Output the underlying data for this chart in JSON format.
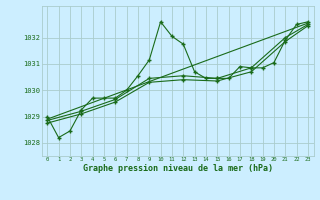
{
  "title": "Graphe pression niveau de la mer (hPa)",
  "background_color": "#cceeff",
  "grid_color": "#aacccc",
  "line_color": "#1a6b1a",
  "xlim": [
    -0.5,
    23.5
  ],
  "ylim": [
    1027.5,
    1033.2
  ],
  "yticks": [
    1028,
    1029,
    1030,
    1031,
    1032
  ],
  "xticks": [
    0,
    1,
    2,
    3,
    4,
    5,
    6,
    7,
    8,
    9,
    10,
    11,
    12,
    13,
    14,
    15,
    16,
    17,
    18,
    19,
    20,
    21,
    22,
    23
  ],
  "series1_x": [
    0,
    1,
    2,
    3,
    4,
    5,
    6,
    7,
    8,
    9,
    10,
    11,
    12,
    13,
    14,
    15,
    16,
    17,
    18,
    19,
    20,
    21,
    22,
    23
  ],
  "series1_y": [
    1029.0,
    1028.2,
    1028.45,
    1029.25,
    1029.7,
    1029.7,
    1029.7,
    1030.0,
    1030.55,
    1031.15,
    1032.6,
    1032.05,
    1031.75,
    1030.7,
    1030.45,
    1030.45,
    1030.45,
    1030.9,
    1030.85,
    1030.85,
    1031.05,
    1031.9,
    1032.5,
    1032.6
  ],
  "series2_x": [
    0,
    23
  ],
  "series2_y": [
    1028.9,
    1032.55
  ],
  "series3_x": [
    0,
    3,
    6,
    9,
    12,
    15,
    18,
    21,
    23
  ],
  "series3_y": [
    1028.85,
    1029.2,
    1029.65,
    1030.45,
    1030.55,
    1030.45,
    1030.85,
    1032.0,
    1032.5
  ],
  "series4_x": [
    0,
    3,
    6,
    9,
    12,
    15,
    18,
    21,
    23
  ],
  "series4_y": [
    1028.75,
    1029.1,
    1029.55,
    1030.3,
    1030.4,
    1030.35,
    1030.7,
    1031.85,
    1032.45
  ]
}
